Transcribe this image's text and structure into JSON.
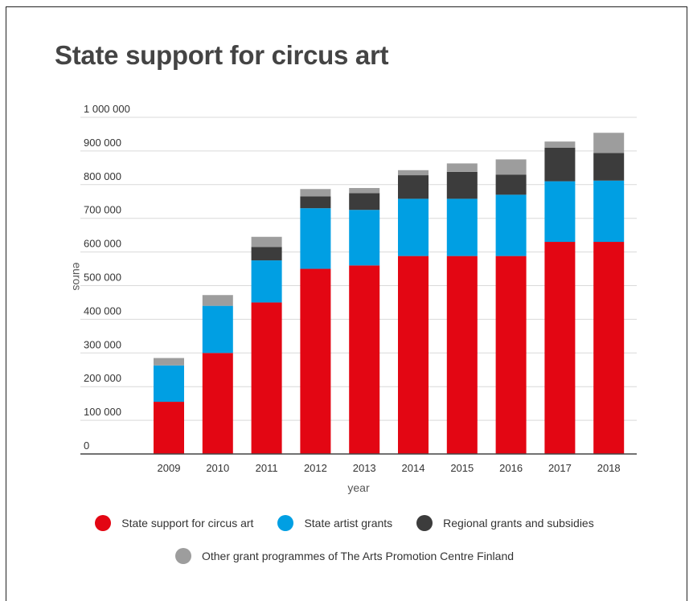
{
  "chart_data": {
    "type": "bar",
    "stacked": true,
    "title": "State support for circus art",
    "xlabel": "year",
    "ylabel": "euros",
    "ylim": [
      0,
      1000000
    ],
    "yticks": [
      0,
      100000,
      200000,
      300000,
      400000,
      500000,
      600000,
      700000,
      800000,
      900000,
      1000000
    ],
    "ytick_labels": [
      "0",
      "100 000",
      "200 000",
      "300 000",
      "400 000",
      "500 000",
      "600 000",
      "700 000",
      "800 000",
      "900 000",
      "1 000 000"
    ],
    "grid": true,
    "legend_position": "bottom",
    "categories": [
      "2009",
      "2010",
      "2011",
      "2012",
      "2013",
      "2014",
      "2015",
      "2016",
      "2017",
      "2018"
    ],
    "series": [
      {
        "name": "State support for circus art",
        "color": "#e30613",
        "values": [
          155000,
          300000,
          450000,
          550000,
          560000,
          588000,
          588000,
          588000,
          630000,
          630000
        ]
      },
      {
        "name": "State artist grants",
        "color": "#009fe3",
        "values": [
          108000,
          140000,
          125000,
          180000,
          165000,
          170000,
          170000,
          182000,
          180000,
          182000
        ]
      },
      {
        "name": "Regional grants and subsidies",
        "color": "#3c3c3c",
        "values": [
          0,
          0,
          40000,
          35000,
          50000,
          70000,
          80000,
          60000,
          100000,
          82000
        ]
      },
      {
        "name": "Other grant programmes of The Arts Promotion Centre Finland",
        "color": "#9d9d9d",
        "values": [
          22000,
          32000,
          30000,
          22000,
          15000,
          15000,
          25000,
          45000,
          18000,
          60000
        ]
      }
    ]
  }
}
